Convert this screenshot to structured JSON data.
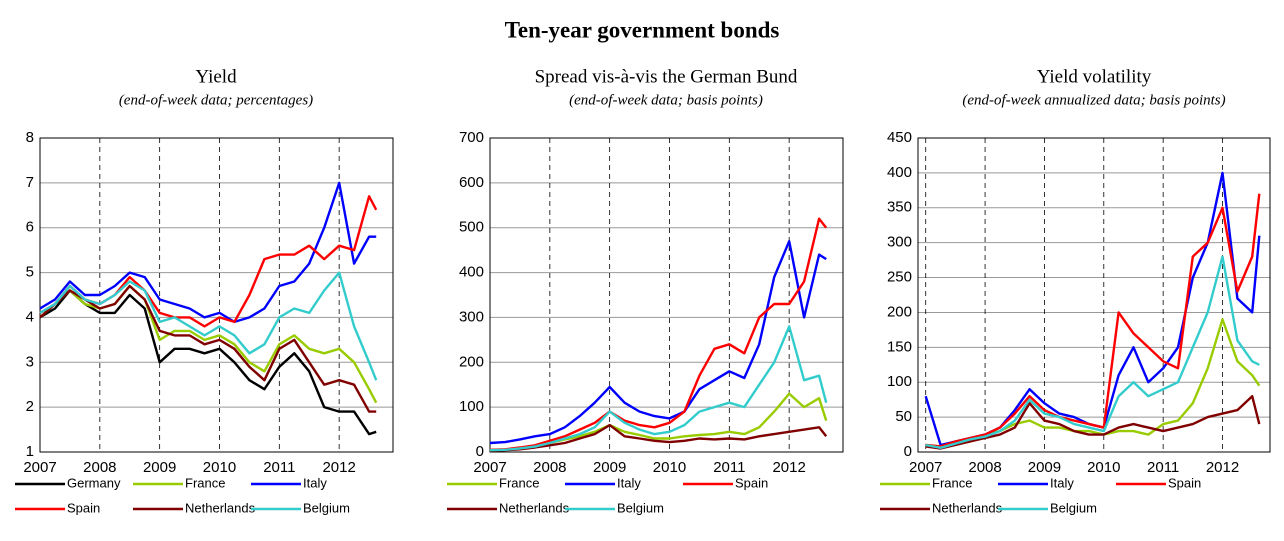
{
  "title": "Ten-year government bonds",
  "chart_data": [
    {
      "type": "line",
      "title": "Yield",
      "subtitle": "(end-of-week data; percentages)",
      "x": [
        2007,
        2007.25,
        2007.5,
        2007.75,
        2008,
        2008.25,
        2008.5,
        2008.75,
        2009,
        2009.25,
        2009.5,
        2009.75,
        2010,
        2010.25,
        2010.5,
        2010.75,
        2011,
        2011.25,
        2011.5,
        2011.75,
        2012,
        2012.25,
        2012.5,
        2012.62
      ],
      "xlim": [
        2007,
        2012.9
      ],
      "xticks": [
        2007,
        2008,
        2009,
        2010,
        2011,
        2012
      ],
      "ylim": [
        1,
        8
      ],
      "yticks": [
        1,
        2,
        3,
        4,
        5,
        6,
        7,
        8
      ],
      "grid": true,
      "series": [
        {
          "name": "Germany",
          "color": "#000000",
          "values": [
            4.0,
            4.2,
            4.6,
            4.3,
            4.1,
            4.1,
            4.5,
            4.2,
            3.0,
            3.3,
            3.3,
            3.2,
            3.3,
            3.0,
            2.6,
            2.4,
            2.9,
            3.2,
            2.8,
            2.0,
            1.9,
            1.9,
            1.4,
            1.45
          ]
        },
        {
          "name": "France",
          "color": "#99cc00",
          "values": [
            4.0,
            4.3,
            4.6,
            4.3,
            4.2,
            4.3,
            4.7,
            4.4,
            3.5,
            3.7,
            3.7,
            3.5,
            3.6,
            3.4,
            3.0,
            2.8,
            3.4,
            3.6,
            3.3,
            3.2,
            3.3,
            3.0,
            2.4,
            2.1
          ]
        },
        {
          "name": "Italy",
          "color": "#0000ff",
          "values": [
            4.2,
            4.4,
            4.8,
            4.5,
            4.5,
            4.7,
            5.0,
            4.9,
            4.4,
            4.3,
            4.2,
            4.0,
            4.1,
            3.9,
            4.0,
            4.2,
            4.7,
            4.8,
            5.2,
            6.0,
            7.0,
            5.2,
            5.8,
            5.8
          ]
        },
        {
          "name": "Spain",
          "color": "#ff0000",
          "values": [
            4.1,
            4.3,
            4.7,
            4.4,
            4.3,
            4.5,
            4.9,
            4.6,
            4.1,
            4.0,
            4.0,
            3.8,
            4.0,
            3.9,
            4.5,
            5.3,
            5.4,
            5.4,
            5.6,
            5.3,
            5.6,
            5.5,
            6.7,
            6.4
          ]
        },
        {
          "name": "Netherlands",
          "color": "#800000",
          "values": [
            4.0,
            4.3,
            4.6,
            4.4,
            4.2,
            4.3,
            4.7,
            4.4,
            3.7,
            3.6,
            3.6,
            3.4,
            3.5,
            3.3,
            2.9,
            2.6,
            3.3,
            3.5,
            3.0,
            2.5,
            2.6,
            2.5,
            1.9,
            1.9
          ]
        },
        {
          "name": "Belgium",
          "color": "#33cccc",
          "values": [
            4.1,
            4.3,
            4.7,
            4.4,
            4.3,
            4.5,
            4.8,
            4.6,
            3.9,
            4.0,
            3.8,
            3.6,
            3.8,
            3.6,
            3.2,
            3.4,
            4.0,
            4.2,
            4.1,
            4.6,
            5.0,
            3.8,
            3.0,
            2.6
          ]
        }
      ]
    },
    {
      "type": "line",
      "title": "Spread vis-à-vis the German Bund",
      "subtitle": "(end-of-week data; basis points)",
      "x": [
        2007,
        2007.25,
        2007.5,
        2007.75,
        2008,
        2008.25,
        2008.5,
        2008.75,
        2009,
        2009.25,
        2009.5,
        2009.75,
        2010,
        2010.25,
        2010.5,
        2010.75,
        2011,
        2011.25,
        2011.5,
        2011.75,
        2012,
        2012.25,
        2012.5,
        2012.62
      ],
      "xlim": [
        2007,
        2012.9
      ],
      "xticks": [
        2007,
        2008,
        2009,
        2010,
        2011,
        2012
      ],
      "ylim": [
        0,
        700
      ],
      "yticks": [
        0,
        100,
        200,
        300,
        400,
        500,
        600,
        700
      ],
      "grid": true,
      "series": [
        {
          "name": "France",
          "color": "#99cc00",
          "values": [
            5,
            5,
            8,
            12,
            20,
            28,
            35,
            45,
            60,
            45,
            38,
            30,
            30,
            35,
            38,
            40,
            45,
            40,
            55,
            90,
            130,
            100,
            120,
            70
          ]
        },
        {
          "name": "Italy",
          "color": "#0000ff",
          "values": [
            20,
            22,
            28,
            35,
            40,
            55,
            80,
            110,
            145,
            110,
            90,
            80,
            75,
            90,
            140,
            160,
            180,
            165,
            240,
            390,
            470,
            300,
            440,
            430
          ]
        },
        {
          "name": "Spain",
          "color": "#ff0000",
          "values": [
            5,
            6,
            10,
            15,
            25,
            35,
            50,
            65,
            90,
            70,
            60,
            55,
            65,
            90,
            170,
            230,
            240,
            220,
            300,
            330,
            330,
            380,
            520,
            500
          ]
        },
        {
          "name": "Netherlands",
          "color": "#800000",
          "values": [
            3,
            4,
            6,
            10,
            15,
            20,
            30,
            40,
            60,
            35,
            30,
            25,
            22,
            25,
            30,
            28,
            30,
            28,
            35,
            40,
            45,
            50,
            55,
            35
          ]
        },
        {
          "name": "Belgium",
          "color": "#33cccc",
          "values": [
            4,
            5,
            8,
            12,
            20,
            30,
            40,
            55,
            90,
            65,
            50,
            40,
            45,
            60,
            90,
            100,
            110,
            100,
            150,
            200,
            280,
            160,
            170,
            110
          ]
        }
      ]
    },
    {
      "type": "line",
      "title": "Yield volatility",
      "subtitle": "(end-of-week annualized data; basis points)",
      "x": [
        2007,
        2007.25,
        2007.5,
        2007.75,
        2008,
        2008.25,
        2008.5,
        2008.75,
        2009,
        2009.25,
        2009.5,
        2009.75,
        2010,
        2010.25,
        2010.5,
        2010.75,
        2011,
        2011.25,
        2011.5,
        2011.75,
        2012,
        2012.25,
        2012.5,
        2012.62
      ],
      "xlim": [
        2006.87,
        2012.8
      ],
      "xticks": [
        2007,
        2008,
        2009,
        2010,
        2011,
        2012
      ],
      "ylim": [
        0,
        450
      ],
      "yticks": [
        0,
        50,
        100,
        150,
        200,
        250,
        300,
        350,
        400,
        450
      ],
      "grid": true,
      "series": [
        {
          "name": "France",
          "color": "#99cc00",
          "values": [
            10,
            8,
            15,
            20,
            25,
            30,
            40,
            45,
            35,
            35,
            30,
            30,
            25,
            30,
            30,
            25,
            40,
            45,
            70,
            120,
            190,
            130,
            110,
            95
          ]
        },
        {
          "name": "Italy",
          "color": "#0000ff",
          "values": [
            80,
            10,
            15,
            20,
            25,
            35,
            60,
            90,
            70,
            55,
            50,
            40,
            35,
            110,
            150,
            100,
            120,
            150,
            250,
            300,
            400,
            220,
            200,
            310
          ]
        },
        {
          "name": "Spain",
          "color": "#ff0000",
          "values": [
            10,
            8,
            15,
            20,
            25,
            35,
            55,
            80,
            60,
            50,
            45,
            40,
            35,
            200,
            170,
            150,
            130,
            120,
            280,
            300,
            350,
            230,
            280,
            370
          ]
        },
        {
          "name": "Netherlands",
          "color": "#800000",
          "values": [
            8,
            5,
            10,
            15,
            20,
            25,
            35,
            70,
            45,
            40,
            30,
            25,
            25,
            35,
            40,
            35,
            30,
            35,
            40,
            50,
            55,
            60,
            80,
            40
          ]
        },
        {
          "name": "Belgium",
          "color": "#33cccc",
          "values": [
            10,
            6,
            12,
            18,
            22,
            30,
            45,
            75,
            55,
            50,
            40,
            35,
            30,
            80,
            100,
            80,
            90,
            100,
            150,
            200,
            280,
            160,
            130,
            125
          ]
        }
      ]
    }
  ]
}
